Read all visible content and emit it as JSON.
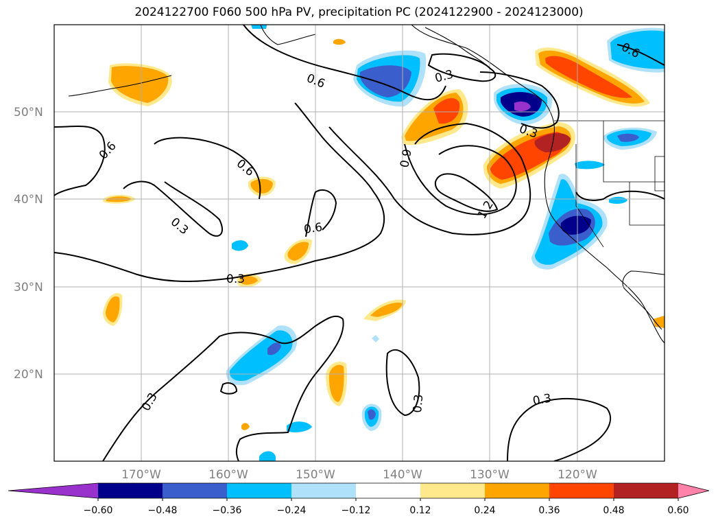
{
  "title": "2024122700 F060 500 hPa PV, precipitation PC (2024122900 - 2024123000)",
  "map": {
    "lat_labels": [
      "50°N",
      "40°N",
      "30°N",
      "20°N"
    ],
    "lon_labels": [
      "170°W",
      "160°W",
      "150°W",
      "140°W",
      "130°W",
      "120°W"
    ],
    "gridlines": true,
    "colors": {
      "grid": "#b0b0b0",
      "contour": "#000000",
      "coast": "#000000"
    }
  },
  "contour_labels": [
    "0.6",
    "0.6",
    "0.6",
    "0.3",
    "0.6",
    "0.3",
    "0.3",
    "0.9",
    "1.2",
    "0.3",
    "0.6",
    "0.3",
    "0.3",
    "0.3"
  ],
  "colorbar": {
    "ticks": [
      "−0.60",
      "−0.48",
      "−0.36",
      "−0.24",
      "−0.12",
      "0.12",
      "0.24",
      "0.36",
      "0.48",
      "0.60"
    ],
    "colors": [
      "#9932cc",
      "#00008b",
      "#3a5fcd",
      "#00bfff",
      "#afe1fa",
      "#ffffff",
      "#ffe98c",
      "#ffa500",
      "#ff4500",
      "#b22222",
      "#ff82ab"
    ]
  }
}
